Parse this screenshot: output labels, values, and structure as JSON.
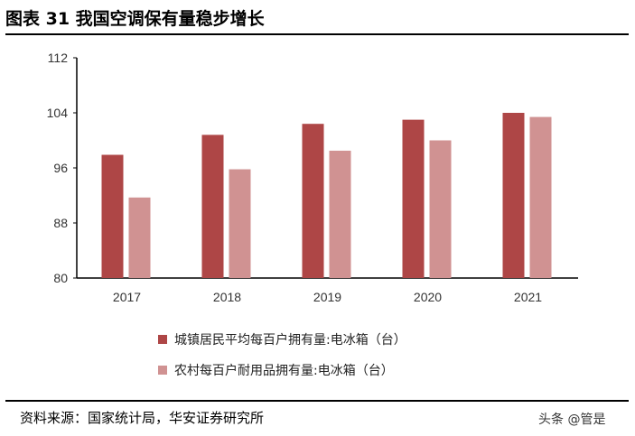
{
  "title": "图表 31 我国空调保有量稳步增长",
  "source": "资料来源：国家统计局，华安证券研究所",
  "watermark": "头条 @管是",
  "chart_data": {
    "type": "bar",
    "categories": [
      "2017",
      "2018",
      "2019",
      "2020",
      "2021"
    ],
    "series": [
      {
        "name": "城镇居民平均每百户拥有量:电冰箱（台）",
        "color": "#ae4646",
        "values": [
          97.9,
          100.8,
          102.4,
          103.0,
          104.0
        ]
      },
      {
        "name": "农村每百户耐用品拥有量:电冰箱（台）",
        "color": "#d09292",
        "values": [
          91.7,
          95.8,
          98.5,
          100.0,
          103.4
        ]
      }
    ],
    "ylim": [
      80,
      112
    ],
    "yticks": [
      "80",
      "88",
      "96",
      "104",
      "112"
    ],
    "grid": false,
    "legend": "bottom"
  }
}
